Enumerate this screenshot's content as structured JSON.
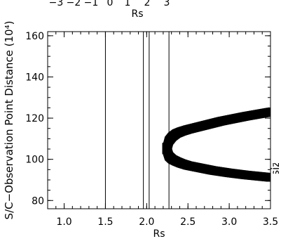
{
  "chart_data": {
    "type": "scatter",
    "title": "",
    "top_axis": {
      "ticks": [
        "−3",
        "−2",
        "−1",
        "0",
        "1",
        "2",
        "3"
      ],
      "label": "Rs"
    },
    "xlabel": "Rs",
    "ylabel": "S/C−Observation Point Distance (10⁴)",
    "right_label": "Pixel size (km)",
    "xlim": [
      0.8,
      3.5
    ],
    "ylim": [
      76,
      162
    ],
    "x_ticks": [
      "1.0",
      "1.5",
      "2.0",
      "2.5",
      "3.0",
      "3.5"
    ],
    "y_ticks": [
      "80",
      "100",
      "120",
      "140",
      "160"
    ],
    "vertical_lines_x": [
      1.5,
      1.96,
      2.03,
      2.27
    ],
    "series": [
      {
        "marker": "filled-square",
        "points": [
          [
            2.25,
            106
          ],
          [
            2.27,
            109
          ],
          [
            2.31,
            111
          ],
          [
            2.36,
            112.5
          ],
          [
            2.42,
            113.5
          ],
          [
            2.5,
            114.5
          ],
          [
            2.6,
            115.5
          ],
          [
            2.7,
            116.5
          ],
          [
            2.8,
            117.5
          ],
          [
            2.9,
            118.5
          ],
          [
            3.0,
            119.3
          ],
          [
            3.1,
            120.1
          ],
          [
            3.2,
            120.9
          ],
          [
            3.3,
            121.6
          ],
          [
            3.4,
            122.3
          ],
          [
            3.5,
            123
          ],
          [
            2.25,
            104
          ],
          [
            2.27,
            101.5
          ],
          [
            2.31,
            100
          ],
          [
            2.36,
            99
          ],
          [
            2.42,
            98
          ],
          [
            2.5,
            97
          ],
          [
            2.6,
            96.2
          ],
          [
            2.7,
            95.4
          ],
          [
            2.8,
            94.6
          ],
          [
            2.9,
            94
          ],
          [
            3.0,
            93.4
          ],
          [
            3.1,
            92.9
          ],
          [
            3.2,
            92.4
          ],
          [
            3.3,
            92
          ],
          [
            3.4,
            91.6
          ],
          [
            3.5,
            91.2
          ]
        ]
      }
    ]
  }
}
